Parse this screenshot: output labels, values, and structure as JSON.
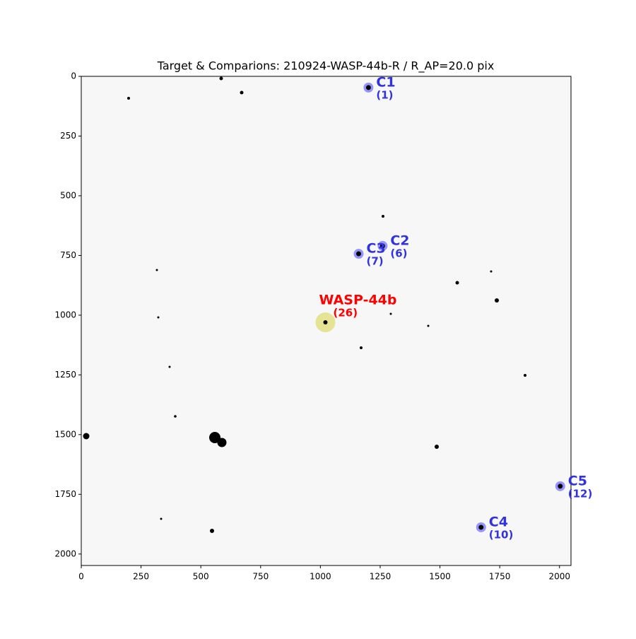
{
  "chart_data": {
    "type": "scatter",
    "title": "Target & Comparions: 210924-WASP-44b-R / R_AP=20.0 pix",
    "xlim": [
      0,
      2048
    ],
    "ylim": [
      2048,
      0
    ],
    "xticks": [
      0,
      250,
      500,
      750,
      1000,
      1250,
      1500,
      1750,
      2000
    ],
    "yticks": [
      0,
      250,
      500,
      750,
      1000,
      1250,
      1500,
      1750,
      2000
    ],
    "series": [
      {
        "name": "WASP-44b",
        "color": "#ff0000",
        "marker_color": "#c8c800",
        "x": [
          1021
        ],
        "values": [
          1030
        ],
        "labels": [
          "(26)"
        ]
      },
      {
        "name": "C1",
        "color": "#3333dd",
        "marker_color": "#0000ff",
        "x": [
          1201
        ],
        "values": [
          47
        ],
        "labels": [
          "(1)"
        ]
      },
      {
        "name": "C2",
        "color": "#3333dd",
        "marker_color": "#0000ff",
        "x": [
          1260
        ],
        "values": [
          710
        ],
        "labels": [
          "(6)"
        ]
      },
      {
        "name": "C3",
        "color": "#3333dd",
        "marker_color": "#0000ff",
        "x": [
          1160
        ],
        "values": [
          743
        ],
        "labels": [
          "(7)"
        ]
      },
      {
        "name": "C4",
        "color": "#3333dd",
        "marker_color": "#0000ff",
        "x": [
          1672
        ],
        "values": [
          1888
        ],
        "labels": [
          "(10)"
        ]
      },
      {
        "name": "C5",
        "color": "#3333dd",
        "marker_color": "#0000ff",
        "x": [
          2003
        ],
        "values": [
          1716
        ],
        "labels": [
          "(12)"
        ]
      }
    ]
  }
}
